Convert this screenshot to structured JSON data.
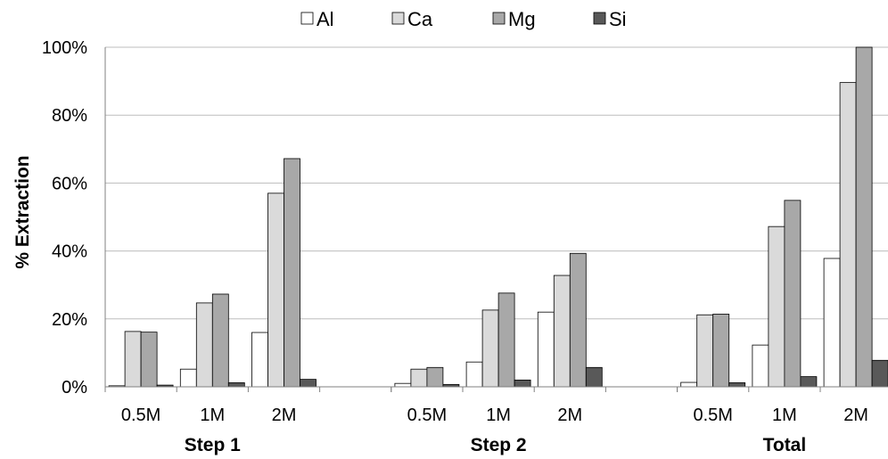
{
  "chart_data": {
    "type": "bar",
    "title": "",
    "xlabel": "",
    "ylabel": "% Extraction",
    "ylim": [
      0,
      100
    ],
    "yticks": [
      "0%",
      "20%",
      "40%",
      "60%",
      "80%",
      "100%"
    ],
    "grid": true,
    "legend_position": "top",
    "groups": [
      "Step 1",
      "Step 2",
      "Total"
    ],
    "categories": [
      "0.5M",
      "1M",
      "2M"
    ],
    "series": [
      {
        "name": "Al",
        "color": "#ffffff",
        "values": [
          [
            0.3,
            5.2,
            16.0
          ],
          [
            1.0,
            7.3,
            22.0
          ],
          [
            1.3,
            12.3,
            37.8
          ]
        ]
      },
      {
        "name": "Ca",
        "color": "#dadada",
        "values": [
          [
            16.3,
            24.7,
            57.0
          ],
          [
            5.2,
            22.6,
            32.8
          ],
          [
            21.2,
            47.2,
            89.6
          ]
        ]
      },
      {
        "name": "Mg",
        "color": "#a8a8a8",
        "values": [
          [
            16.1,
            27.3,
            67.2
          ],
          [
            5.7,
            27.6,
            39.3
          ],
          [
            21.4,
            54.9,
            100.0
          ]
        ]
      },
      {
        "name": "Si",
        "color": "#595959",
        "values": [
          [
            0.5,
            1.2,
            2.2
          ],
          [
            0.7,
            2.0,
            5.7
          ],
          [
            1.2,
            3.0,
            7.8
          ]
        ]
      }
    ]
  }
}
